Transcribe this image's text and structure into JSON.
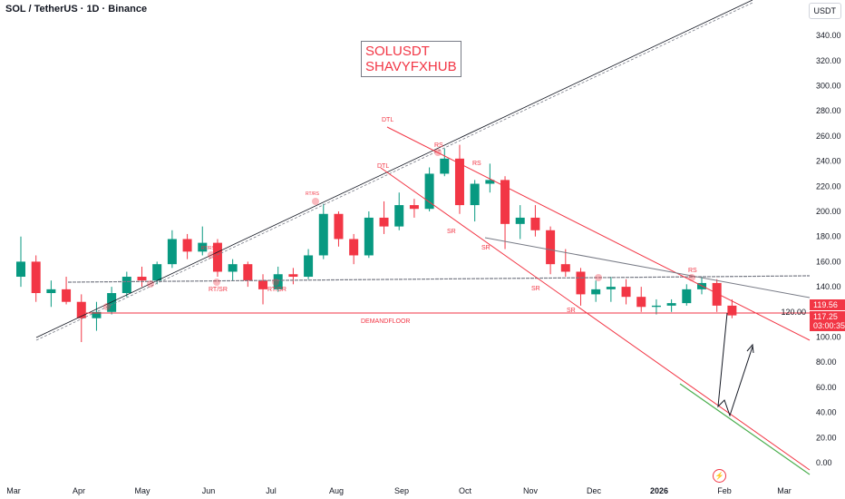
{
  "header": {
    "title": "SOL / TetherUS · 1D · Binance",
    "currency": "USDT"
  },
  "watermark": {
    "line1": "SOLUSDT",
    "line2": "SHAVYFXHUB"
  },
  "price_tags": {
    "level": "119.56",
    "last": "117.25",
    "countdown": "03:00:35"
  },
  "colors": {
    "up": "#089981",
    "down": "#f23645",
    "annotation": "#f23645",
    "trend": "#131722"
  },
  "annotations": [
    {
      "text": "DTL"
    },
    {
      "text": "DTL"
    },
    {
      "text": "RS"
    },
    {
      "text": "RS"
    },
    {
      "text": "RS"
    },
    {
      "text": "SR"
    },
    {
      "text": "SR"
    },
    {
      "text": "SR"
    },
    {
      "text": "SR"
    },
    {
      "text": "RT/RS"
    },
    {
      "text": "RT/RS"
    },
    {
      "text": "RT/SR"
    },
    {
      "text": "RT/SR"
    },
    {
      "text": "DEMANDFLOOR"
    }
  ],
  "icons": {
    "bolt": "lightning-icon"
  },
  "chart_data": {
    "type": "candlestick",
    "title": "SOL / TetherUS · 1D · Binance",
    "ylim": [
      -10,
      360
    ],
    "y_ticks": [
      "340.00",
      "320.00",
      "300.00",
      "280.00",
      "260.00",
      "240.00",
      "220.00",
      "200.00",
      "180.00",
      "160.00",
      "140.00",
      "120.00",
      "100.00",
      "80.00",
      "60.00",
      "40.00",
      "20.00",
      "0.00"
    ],
    "x_ticks": [
      "Mar",
      "Apr",
      "May",
      "Jun",
      "Jul",
      "Aug",
      "Sep",
      "Oct",
      "Nov",
      "Dec",
      "2026",
      "Feb",
      "Mar"
    ],
    "grid": false,
    "candles": [
      {
        "d": "2025-03-01",
        "o": 148,
        "h": 180,
        "l": 140,
        "c": 160
      },
      {
        "d": "2025-03-08",
        "o": 160,
        "h": 165,
        "l": 128,
        "c": 135
      },
      {
        "d": "2025-03-15",
        "o": 135,
        "h": 145,
        "l": 124,
        "c": 138
      },
      {
        "d": "2025-03-22",
        "o": 138,
        "h": 148,
        "l": 126,
        "c": 128
      },
      {
        "d": "2025-03-29",
        "o": 128,
        "h": 134,
        "l": 96,
        "c": 115
      },
      {
        "d": "2025-04-05",
        "o": 115,
        "h": 128,
        "l": 105,
        "c": 120
      },
      {
        "d": "2025-04-12",
        "o": 120,
        "h": 140,
        "l": 118,
        "c": 135
      },
      {
        "d": "2025-04-19",
        "o": 135,
        "h": 152,
        "l": 132,
        "c": 148
      },
      {
        "d": "2025-04-26",
        "o": 148,
        "h": 156,
        "l": 140,
        "c": 145
      },
      {
        "d": "2025-05-03",
        "o": 145,
        "h": 160,
        "l": 142,
        "c": 158
      },
      {
        "d": "2025-05-10",
        "o": 158,
        "h": 185,
        "l": 155,
        "c": 178
      },
      {
        "d": "2025-05-17",
        "o": 178,
        "h": 182,
        "l": 162,
        "c": 168
      },
      {
        "d": "2025-05-24",
        "o": 168,
        "h": 188,
        "l": 165,
        "c": 175
      },
      {
        "d": "2025-05-31",
        "o": 175,
        "h": 178,
        "l": 148,
        "c": 152
      },
      {
        "d": "2025-06-07",
        "o": 152,
        "h": 162,
        "l": 145,
        "c": 158
      },
      {
        "d": "2025-06-14",
        "o": 158,
        "h": 160,
        "l": 140,
        "c": 145
      },
      {
        "d": "2025-06-21",
        "o": 145,
        "h": 150,
        "l": 126,
        "c": 138
      },
      {
        "d": "2025-06-28",
        "o": 138,
        "h": 156,
        "l": 136,
        "c": 150
      },
      {
        "d": "2025-07-05",
        "o": 150,
        "h": 155,
        "l": 142,
        "c": 148
      },
      {
        "d": "2025-07-12",
        "o": 148,
        "h": 170,
        "l": 146,
        "c": 165
      },
      {
        "d": "2025-07-19",
        "o": 165,
        "h": 206,
        "l": 162,
        "c": 198
      },
      {
        "d": "2025-07-26",
        "o": 198,
        "h": 200,
        "l": 172,
        "c": 178
      },
      {
        "d": "2025-08-02",
        "o": 178,
        "h": 182,
        "l": 158,
        "c": 165
      },
      {
        "d": "2025-08-09",
        "o": 165,
        "h": 200,
        "l": 163,
        "c": 195
      },
      {
        "d": "2025-08-16",
        "o": 195,
        "h": 208,
        "l": 182,
        "c": 188
      },
      {
        "d": "2025-08-23",
        "o": 188,
        "h": 215,
        "l": 185,
        "c": 205
      },
      {
        "d": "2025-08-30",
        "o": 205,
        "h": 210,
        "l": 195,
        "c": 202
      },
      {
        "d": "2025-09-06",
        "o": 202,
        "h": 235,
        "l": 200,
        "c": 230
      },
      {
        "d": "2025-09-13",
        "o": 230,
        "h": 250,
        "l": 228,
        "c": 242
      },
      {
        "d": "2025-09-20",
        "o": 242,
        "h": 253,
        "l": 198,
        "c": 205
      },
      {
        "d": "2025-09-27",
        "o": 205,
        "h": 225,
        "l": 192,
        "c": 222
      },
      {
        "d": "2025-10-04",
        "o": 222,
        "h": 238,
        "l": 215,
        "c": 225
      },
      {
        "d": "2025-10-11",
        "o": 225,
        "h": 228,
        "l": 170,
        "c": 190
      },
      {
        "d": "2025-10-18",
        "o": 190,
        "h": 205,
        "l": 178,
        "c": 195
      },
      {
        "d": "2025-10-25",
        "o": 195,
        "h": 205,
        "l": 180,
        "c": 185
      },
      {
        "d": "2025-11-01",
        "o": 185,
        "h": 188,
        "l": 150,
        "c": 158
      },
      {
        "d": "2025-11-08",
        "o": 158,
        "h": 170,
        "l": 148,
        "c": 152
      },
      {
        "d": "2025-11-15",
        "o": 152,
        "h": 155,
        "l": 125,
        "c": 134
      },
      {
        "d": "2025-11-22",
        "o": 134,
        "h": 145,
        "l": 128,
        "c": 138
      },
      {
        "d": "2025-11-29",
        "o": 138,
        "h": 148,
        "l": 128,
        "c": 140
      },
      {
        "d": "2025-12-06",
        "o": 140,
        "h": 146,
        "l": 126,
        "c": 132
      },
      {
        "d": "2025-12-13",
        "o": 132,
        "h": 140,
        "l": 120,
        "c": 124
      },
      {
        "d": "2025-12-20",
        "o": 124,
        "h": 130,
        "l": 118,
        "c": 125
      },
      {
        "d": "2025-12-27",
        "o": 125,
        "h": 130,
        "l": 120,
        "c": 127
      },
      {
        "d": "2026-01-03",
        "o": 127,
        "h": 142,
        "l": 125,
        "c": 138
      },
      {
        "d": "2026-01-10",
        "o": 138,
        "h": 148,
        "l": 134,
        "c": 143
      },
      {
        "d": "2026-01-17",
        "o": 143,
        "h": 146,
        "l": 120,
        "c": 125
      },
      {
        "d": "2026-01-24",
        "o": 125,
        "h": 130,
        "l": 115,
        "c": 117.25
      }
    ]
  }
}
